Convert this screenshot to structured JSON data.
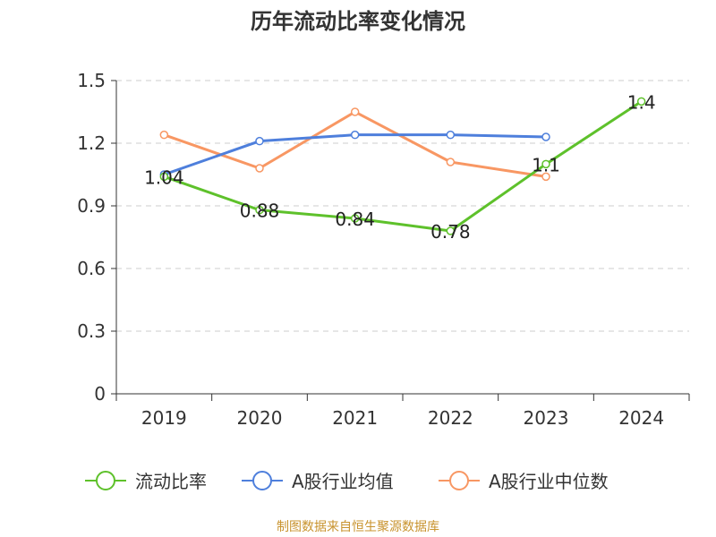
{
  "chart_data": {
    "type": "line",
    "title": "历年流动比率变化情况",
    "xlabel": "",
    "ylabel": "",
    "categories": [
      "2019",
      "2020",
      "2021",
      "2022",
      "2023",
      "2024"
    ],
    "ylim": [
      0,
      1.5
    ],
    "yticks": [
      "0",
      "0.3",
      "0.6",
      "0.9",
      "1.2",
      "1.5"
    ],
    "grid": true,
    "legend_position": "bottom",
    "series": [
      {
        "name": "流动比率",
        "color": "#5ec12b",
        "values": [
          1.04,
          0.88,
          0.84,
          0.78,
          1.1,
          1.4
        ],
        "labels": [
          "1.04",
          "0.88",
          "0.84",
          "0.78",
          "1.1",
          "1.4"
        ]
      },
      {
        "name": "A股行业均值",
        "color": "#4e7fdc",
        "values": [
          1.05,
          1.21,
          1.24,
          1.24,
          1.23,
          null
        ]
      },
      {
        "name": "A股行业中位数",
        "color": "#f89763",
        "values": [
          1.24,
          1.08,
          1.35,
          1.11,
          1.04,
          null
        ]
      }
    ],
    "source": "制图数据来自恒生聚源数据库"
  }
}
